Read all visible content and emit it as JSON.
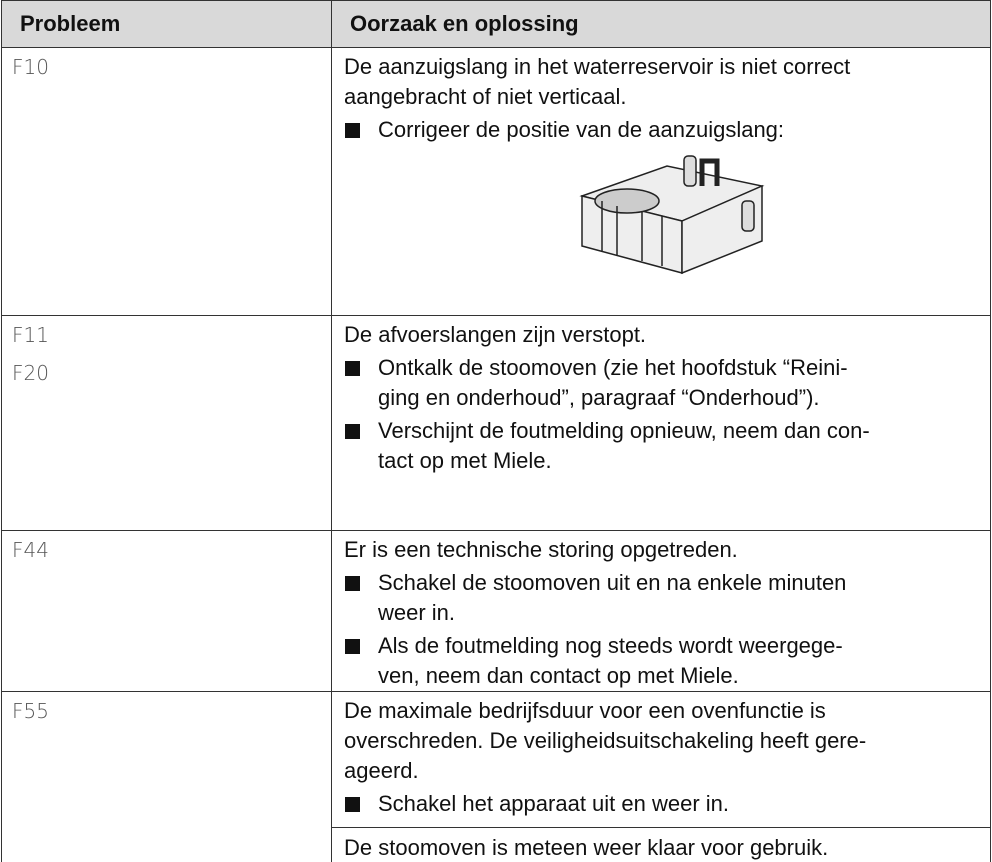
{
  "table": {
    "headers": [
      "Probleem",
      "Oorzaak en oplossing"
    ],
    "rows": [
      {
        "codes": [
          "F10"
        ],
        "items": [
          {
            "kind": "text",
            "lines": [
              "De aanzuigslang in het waterreservoir is niet correct",
              "aangebracht of niet verticaal."
            ]
          },
          {
            "kind": "bullet",
            "lines": [
              "Corrigeer de positie van de aanzuigslang:"
            ]
          }
        ]
      },
      {
        "codes": [
          "F11",
          "F20"
        ],
        "items": [
          {
            "kind": "text",
            "lines": [
              "De afvoerslangen zijn verstopt."
            ]
          },
          {
            "kind": "bullet",
            "lines": [
              "Ontkalk de stoomoven (zie het hoofdstuk “Reini-",
              "ging en onderhoud”, paragraaf “Onderhoud”)."
            ]
          },
          {
            "kind": "bullet",
            "lines": [
              "Verschijnt de foutmelding opnieuw, neem dan con-",
              "tact op met Miele."
            ]
          }
        ]
      },
      {
        "codes": [
          "F44"
        ],
        "items": [
          {
            "kind": "text",
            "lines": [
              "Er is een technische storing opgetreden."
            ]
          },
          {
            "kind": "bullet",
            "lines": [
              "Schakel de stoomoven uit en na enkele minuten",
              "weer in."
            ]
          },
          {
            "kind": "bullet",
            "lines": [
              "Als de foutmelding nog steeds wordt weergege-",
              "ven, neem dan contact op met Miele."
            ]
          }
        ]
      },
      {
        "codes": [
          "F55"
        ],
        "items": [
          {
            "kind": "text",
            "lines": [
              "De maximale bedrijfsduur voor een ovenfunctie is",
              "overschreden. De veiligheidsuitschakeling heeft gere-",
              "ageerd."
            ]
          },
          {
            "kind": "bullet",
            "lines": [
              "Schakel het apparaat uit en weer in."
            ]
          },
          {
            "kind": "separated",
            "lines": [
              "De stoomoven is meteen weer klaar voor gebruik."
            ]
          }
        ]
      }
    ]
  }
}
